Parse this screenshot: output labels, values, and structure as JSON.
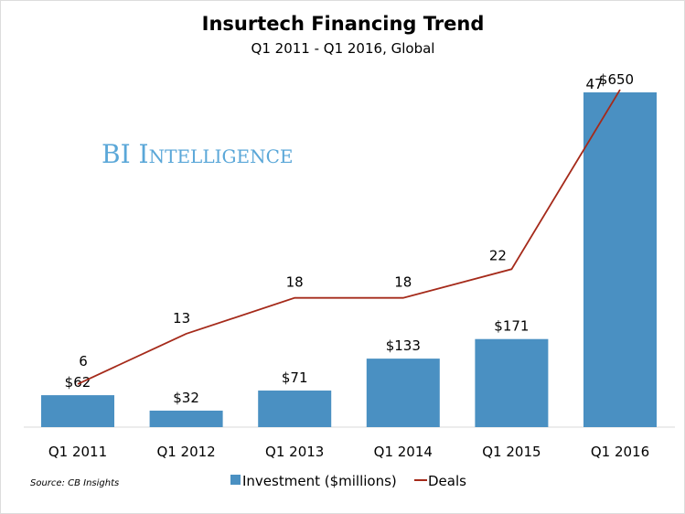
{
  "chart_data": {
    "type": "bar+line",
    "title": "Insurtech Financing Trend",
    "subtitle": "Q1 2011 - Q1 2016, Global",
    "categories": [
      "Q1 2011",
      "Q1 2012",
      "Q1 2013",
      "Q1 2014",
      "Q1 2015",
      "Q1 2016"
    ],
    "series": [
      {
        "name": "Investment ($millions)",
        "type": "bar",
        "values": [
          62,
          32,
          71,
          133,
          171,
          650
        ],
        "labels": [
          "$62",
          "$32",
          "$71",
          "$133",
          "$171",
          "$650"
        ],
        "color": "#4a90c2"
      },
      {
        "name": "Deals",
        "type": "line",
        "values": [
          6,
          13,
          18,
          18,
          22,
          47
        ],
        "labels": [
          "6",
          "13",
          "18",
          "18",
          "22",
          "47"
        ],
        "color": "#a52a1a"
      }
    ],
    "ylim_bars": [
      0,
      650
    ],
    "grid": false,
    "legend": "bottom",
    "source": "Source: CB Insights",
    "watermark": "BI Intelligence"
  }
}
